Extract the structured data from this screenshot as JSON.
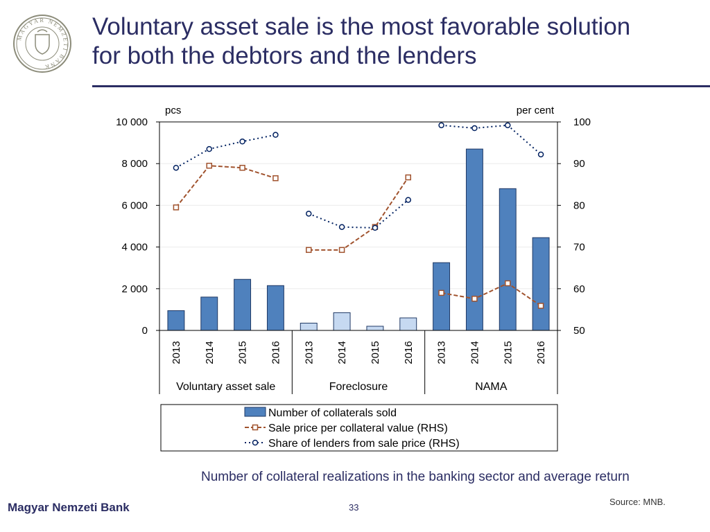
{
  "slide": {
    "title_line1": "Voluntary asset sale is the most favorable solution",
    "title_line2": "for both the debtors and the lenders",
    "caption": "Number of collateral realizations in the banking sector and average return",
    "footer_brand": "Magyar Nemzeti Bank",
    "page_number": "33",
    "source": "Source: MNB.",
    "logo_text": "MAGYAR NEMZETI BANK"
  },
  "colors": {
    "title": "#2b2d63",
    "bar_dark": "#4f81bd",
    "bar_light": "#c6d9f1",
    "bar_border": "#1f3864",
    "sale_price_line": "#a0522d",
    "share_line": "#002060"
  },
  "chart_data": {
    "type": "bar",
    "left_axis_label": "pcs",
    "right_axis_label": "per cent",
    "ylim_left": [
      0,
      10000
    ],
    "ylim_right": [
      50,
      100
    ],
    "left_ticks": [
      "10 000",
      "8 000",
      "6 000",
      "4 000",
      "2 000",
      "0"
    ],
    "left_tick_values": [
      10000,
      8000,
      6000,
      4000,
      2000,
      0
    ],
    "right_ticks": [
      "100",
      "90",
      "80",
      "70",
      "60",
      "50"
    ],
    "right_tick_values": [
      100,
      90,
      80,
      70,
      60,
      50
    ],
    "groups": [
      {
        "name": "Voluntary asset sale",
        "years": [
          "2013",
          "2014",
          "2015",
          "2016"
        ],
        "bar_style": "dark"
      },
      {
        "name": "Foreclosure",
        "years": [
          "2013",
          "2014",
          "2015",
          "2016"
        ],
        "bar_style": "light"
      },
      {
        "name": "NAMA",
        "years": [
          "2013",
          "2014",
          "2015",
          "2016"
        ],
        "bar_style": "dark"
      }
    ],
    "series": [
      {
        "name": "Number of collaterals sold",
        "kind": "bar",
        "axis": "left",
        "values": [
          950,
          1600,
          2450,
          2150,
          350,
          850,
          200,
          600,
          3250,
          8700,
          6800,
          4450
        ]
      },
      {
        "name": "Sale price per collateral value (RHS)",
        "kind": "line",
        "axis": "right",
        "style": "dashed-square",
        "values": [
          79.5,
          89.5,
          89.0,
          86.5,
          69.3,
          69.3,
          74.8,
          86.7,
          59.0,
          57.6,
          61.3,
          55.9
        ]
      },
      {
        "name": "Share of lenders from sale price (RHS)",
        "kind": "line",
        "axis": "right",
        "style": "dotted-circle",
        "values": [
          89.0,
          93.5,
          95.3,
          96.9,
          78.0,
          74.8,
          74.6,
          81.3,
          99.2,
          98.5,
          99.2,
          92.2
        ]
      }
    ],
    "legend_position": "bottom"
  }
}
